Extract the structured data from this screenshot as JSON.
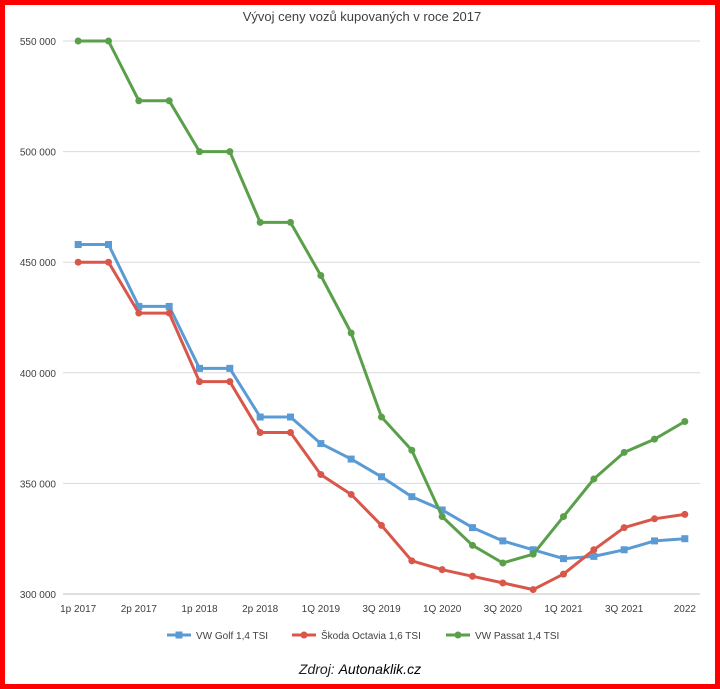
{
  "chart_data": {
    "type": "line",
    "title": "Vývoj ceny vozů kupovaných v roce 2017",
    "xlabel": "",
    "ylabel": "",
    "ylim": [
      300000,
      550000
    ],
    "yticks": [
      300000,
      350000,
      400000,
      450000,
      500000,
      550000
    ],
    "ytick_labels": [
      "300 000",
      "350 000",
      "400 000",
      "450 000",
      "500 000",
      "550 000"
    ],
    "x": [
      "1p 2017",
      "",
      "2p 2017",
      "",
      "1p 2018",
      "",
      "2p 2018",
      "",
      "1Q 2019",
      "",
      "3Q 2019",
      "",
      "1Q 2020",
      "",
      "3Q 2020",
      "",
      "1Q 2021",
      "",
      "3Q 2021",
      "",
      "2022"
    ],
    "xtick_labels": [
      "1p 2017",
      "2p 2017",
      "1p 2018",
      "2p 2018",
      "1Q 2019",
      "3Q 2019",
      "1Q 2020",
      "3Q 2020",
      "1Q 2021",
      "3Q 2021",
      "2022"
    ],
    "grid": true,
    "legend_position": "bottom",
    "series": [
      {
        "name": "VW Golf 1,4 TSI",
        "color": "#5b9bd5",
        "marker": "square",
        "values": [
          458000,
          458000,
          430000,
          430000,
          402000,
          402000,
          380000,
          380000,
          368000,
          361000,
          353000,
          344000,
          338000,
          330000,
          324000,
          320000,
          316000,
          317000,
          320000,
          324000,
          325000
        ]
      },
      {
        "name": "Škoda Octavia 1,6 TSI",
        "color": "#d9574a",
        "marker": "circle",
        "values": [
          450000,
          450000,
          427000,
          427000,
          396000,
          396000,
          373000,
          373000,
          354000,
          345000,
          331000,
          315000,
          311000,
          308000,
          305000,
          302000,
          309000,
          320000,
          330000,
          334000,
          336000
        ]
      },
      {
        "name": "VW Passat 1,4 TSI",
        "color": "#5aa04a",
        "marker": "circle",
        "values": [
          550000,
          550000,
          523000,
          523000,
          500000,
          500000,
          468000,
          468000,
          444000,
          418000,
          380000,
          365000,
          335000,
          322000,
          314000,
          318000,
          335000,
          352000,
          364000,
          370000,
          378000
        ]
      }
    ]
  },
  "footer": {
    "label": "Zdroj:",
    "source": "Autonaklik.cz"
  }
}
